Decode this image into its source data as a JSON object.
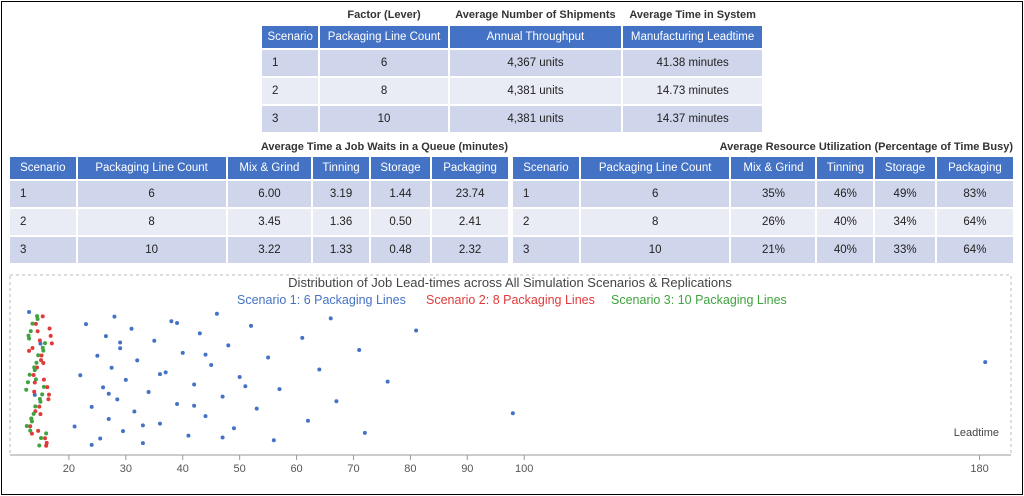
{
  "top_table": {
    "group_labels": [
      "Factor (Lever)",
      "Average Number of Shipments",
      "Average Time in System"
    ],
    "columns": [
      "Scenario",
      "Packaging Line Count",
      "Annual Throughput",
      "Manufacturing Leadtime"
    ],
    "rows": [
      [
        "1",
        "6",
        "4,367 units",
        "41.38 minutes"
      ],
      [
        "2",
        "8",
        "4,381 units",
        "14.73 minutes"
      ],
      [
        "3",
        "10",
        "4,381 units",
        "14.37 minutes"
      ]
    ]
  },
  "queue_table": {
    "title": "Average Time a Job Waits in a Queue (minutes)",
    "columns": [
      "Scenario",
      "Packaging Line Count",
      "Mix & Grind",
      "Tinning",
      "Storage",
      "Packaging"
    ],
    "rows": [
      [
        "1",
        "6",
        "6.00",
        "3.19",
        "1.44",
        "23.74"
      ],
      [
        "2",
        "8",
        "3.45",
        "1.36",
        "0.50",
        "2.41"
      ],
      [
        "3",
        "10",
        "3.22",
        "1.33",
        "0.48",
        "2.32"
      ]
    ]
  },
  "utilization_table": {
    "title": "Average Resource Utilization (Percentage of Time Busy)",
    "columns": [
      "Scenario",
      "Packaging Line Count",
      "Mix & Grind",
      "Tinning",
      "Storage",
      "Packaging"
    ],
    "rows": [
      [
        "1",
        "6",
        "35%",
        "46%",
        "49%",
        "83%"
      ],
      [
        "2",
        "8",
        "26%",
        "40%",
        "34%",
        "64%"
      ],
      [
        "3",
        "10",
        "21%",
        "40%",
        "33%",
        "64%"
      ]
    ]
  },
  "chart_data": {
    "type": "strip",
    "title": "Distribution of Job Lead-times across All Simulation Scenarios & Replications",
    "x_label": "Leadtime",
    "xlim": [
      10,
      185
    ],
    "xticks": [
      20,
      30,
      40,
      50,
      60,
      70,
      80,
      90,
      100,
      180
    ],
    "series": [
      {
        "name": "Scenario 1: 6 Packaging Lines",
        "color": "#4472c4",
        "values": [
          13,
          14,
          15,
          21,
          22,
          23,
          24,
          25,
          25.5,
          26,
          26.5,
          27,
          27.5,
          28,
          28.5,
          29,
          29.5,
          30,
          31,
          31.5,
          32,
          33,
          34,
          35,
          36,
          37,
          38,
          39,
          40,
          41,
          42,
          43,
          44,
          45,
          46,
          47,
          48,
          49,
          50,
          52,
          53,
          55,
          56,
          57,
          61,
          62,
          64,
          66,
          67,
          71,
          72,
          76,
          81,
          98,
          181,
          24,
          27,
          29,
          33,
          36,
          39,
          42,
          44,
          47,
          51
        ]
      },
      {
        "name": "Scenario 2: 8 Packaging Lines",
        "color": "#e03a3a",
        "values": [
          13,
          13.5,
          14,
          14.5,
          15,
          15.5,
          16,
          16.5,
          17,
          13.2,
          13.8,
          14.2,
          14.8,
          15.2,
          15.8,
          16.2,
          16.8,
          13.4,
          14.4,
          15.4,
          16.4,
          13.6,
          14.6,
          15.6,
          16.6,
          14.1,
          15.1,
          16.1,
          13.9,
          14.9
        ]
      },
      {
        "name": "Scenario 3: 10 Packaging Lines",
        "color": "#3fa33f",
        "values": [
          12.5,
          13,
          13.5,
          14,
          14.5,
          15,
          15.5,
          16,
          12.8,
          13.3,
          13.8,
          14.3,
          14.8,
          15.3,
          15.8,
          12.6,
          13.1,
          13.6,
          14.1,
          14.6,
          15.1,
          15.6,
          12.9,
          13.4,
          13.9,
          14.4,
          14.9,
          15.4,
          13.2,
          14.2
        ]
      }
    ]
  }
}
